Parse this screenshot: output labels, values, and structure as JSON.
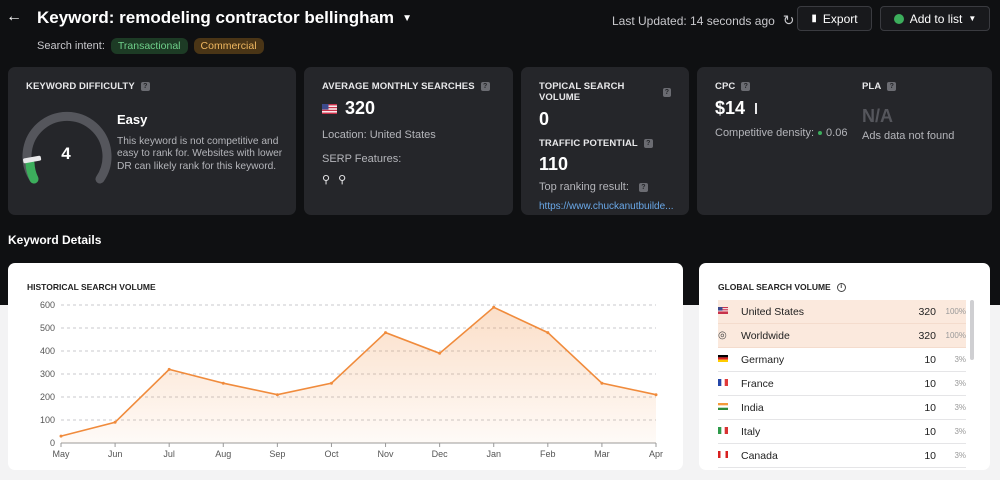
{
  "header": {
    "title": "Keyword: remodeling contractor bellingham",
    "search_intent_label": "Search intent:",
    "intents": [
      "Transactional",
      "Commercial"
    ],
    "last_updated": "Last Updated: 14 seconds ago",
    "export_label": "Export",
    "add_to_list_label": "Add to list"
  },
  "cards": {
    "difficulty": {
      "label": "KEYWORD DIFFICULTY",
      "value": "4",
      "level": "Easy",
      "description": "This keyword is not competitive and easy to rank for. Websites with lower DR can likely rank for this keyword."
    },
    "searches": {
      "label": "AVERAGE MONTHLY SEARCHES",
      "value": "320",
      "location": "Location: United States",
      "serp_label": "SERP Features:"
    },
    "topical": {
      "label": "TOPICAL SEARCH VOLUME",
      "value": "0",
      "traffic_label": "TRAFFIC POTENTIAL",
      "traffic_value": "110",
      "top_result_label": "Top ranking result:",
      "top_result_url": "https://www.chuckanutbuilde..."
    },
    "cpc": {
      "label": "CPC",
      "value": "$14",
      "density_label": "Competitive density:",
      "density_value": "0.06",
      "pla_label": "PLA",
      "pla_value": "N/A",
      "pla_note": "Ads data not found"
    }
  },
  "section_title": "Keyword Details",
  "historical": {
    "title": "HISTORICAL SEARCH VOLUME"
  },
  "global": {
    "title": "GLOBAL SEARCH VOLUME",
    "rows": [
      {
        "country": "United States",
        "value": "320",
        "pct": "100%",
        "flag": "us-flag-icon"
      },
      {
        "country": "Worldwide",
        "value": "320",
        "pct": "100%",
        "flag": "globe-icon"
      },
      {
        "country": "Germany",
        "value": "10",
        "pct": "3%",
        "flag": "de-flag-icon"
      },
      {
        "country": "France",
        "value": "10",
        "pct": "3%",
        "flag": "fr-flag-icon"
      },
      {
        "country": "India",
        "value": "10",
        "pct": "3%",
        "flag": "in-flag-icon"
      },
      {
        "country": "Italy",
        "value": "10",
        "pct": "3%",
        "flag": "it-flag-icon"
      },
      {
        "country": "Canada",
        "value": "10",
        "pct": "3%",
        "flag": "ca-flag-icon"
      }
    ]
  },
  "chart_data": {
    "type": "area",
    "categories": [
      "May",
      "Jun",
      "Jul",
      "Aug",
      "Sep",
      "Oct",
      "Nov",
      "Dec",
      "Jan",
      "Feb",
      "Mar",
      "Apr"
    ],
    "values": [
      30,
      90,
      320,
      260,
      210,
      260,
      480,
      390,
      590,
      480,
      260,
      210
    ],
    "title": "HISTORICAL SEARCH VOLUME",
    "ylim": [
      0,
      600
    ],
    "yticks": [
      0,
      100,
      200,
      300,
      400,
      500,
      600
    ],
    "grid": true,
    "color": "#f08b3c"
  },
  "colors": {
    "accent": "#f08b3c",
    "link": "#6aa8e8",
    "easy_green": "#3cae5c"
  }
}
